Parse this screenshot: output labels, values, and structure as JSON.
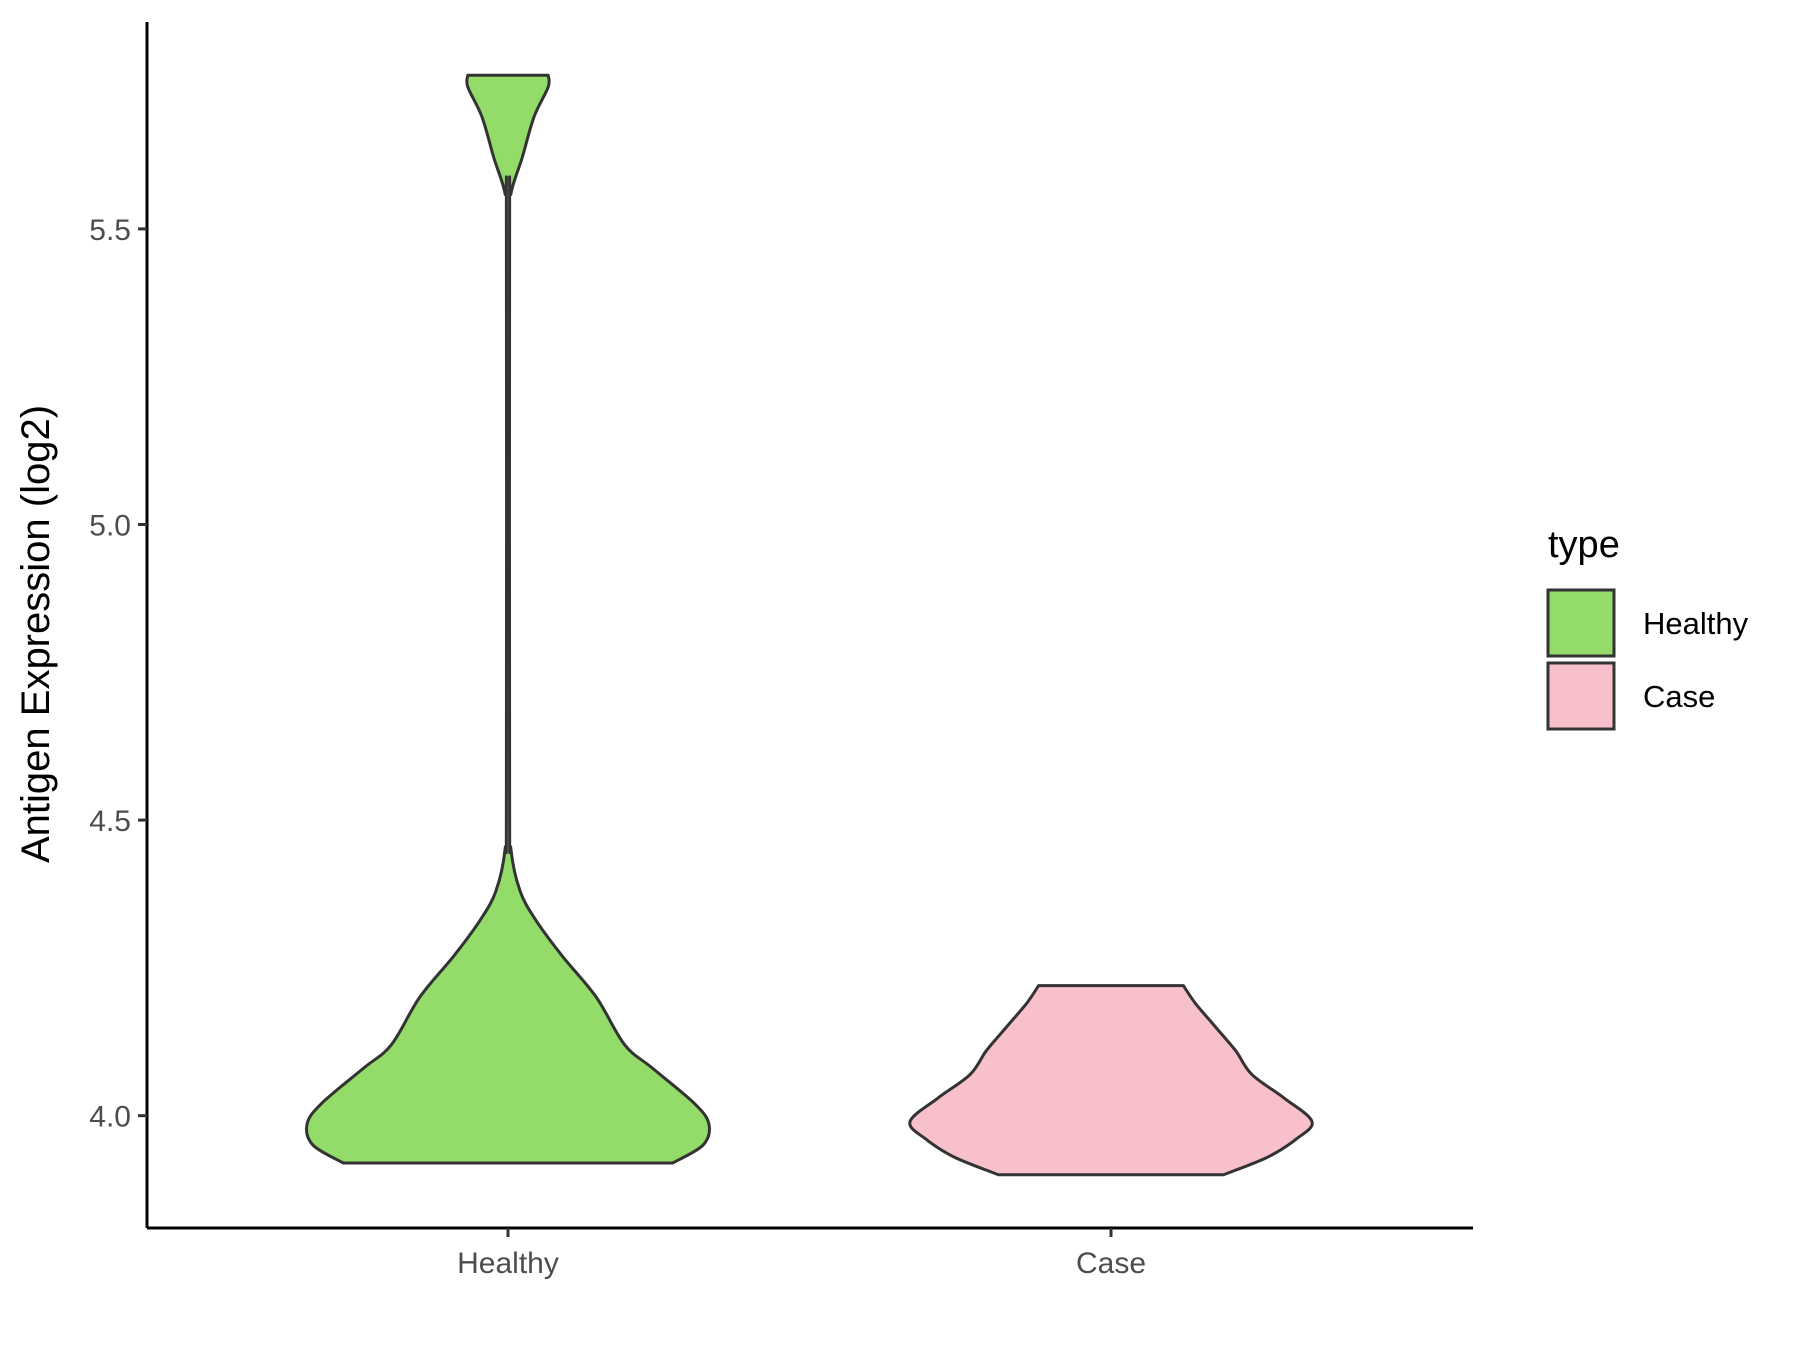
{
  "chart_data": {
    "type": "violin",
    "title": "",
    "xlabel": "",
    "ylabel": "Antigen Expression (log2)",
    "ylim": [
      3.81,
      5.85
    ],
    "yticks": [
      "4.0",
      "4.5",
      "5.0",
      "5.5"
    ],
    "ytick_values": [
      4.0,
      4.5,
      5.0,
      5.5
    ],
    "categories": [
      "Healthy",
      "Case"
    ],
    "grid": false,
    "legend": {
      "title": "type",
      "position": "right",
      "entries": [
        {
          "label": "Healthy",
          "color": "#93dc6a"
        },
        {
          "label": "Case",
          "color": "#f8c0cb"
        }
      ]
    },
    "series": [
      {
        "name": "Healthy",
        "color": "#93dc6a",
        "min": 3.92,
        "max": 5.76,
        "density_profile": [
          [
            3.92,
            0.82
          ],
          [
            3.95,
            0.97
          ],
          [
            3.985,
            1.0
          ],
          [
            4.02,
            0.93
          ],
          [
            4.08,
            0.72
          ],
          [
            4.12,
            0.58
          ],
          [
            4.2,
            0.44
          ],
          [
            4.27,
            0.27
          ],
          [
            4.33,
            0.14
          ],
          [
            4.38,
            0.06
          ],
          [
            4.45,
            0.015
          ],
          [
            4.55,
            0.0
          ],
          [
            5.5,
            0.0
          ],
          [
            5.56,
            0.015
          ],
          [
            5.62,
            0.07
          ],
          [
            5.69,
            0.13
          ],
          [
            5.74,
            0.2
          ],
          [
            5.76,
            0.2
          ]
        ]
      },
      {
        "name": "Case",
        "color": "#f8c0cb",
        "min": 3.9,
        "max": 4.22,
        "density_profile": [
          [
            3.9,
            0.56
          ],
          [
            3.93,
            0.78
          ],
          [
            3.96,
            0.92
          ],
          [
            3.99,
            1.0
          ],
          [
            4.03,
            0.86
          ],
          [
            4.07,
            0.7
          ],
          [
            4.11,
            0.62
          ],
          [
            4.15,
            0.52
          ],
          [
            4.19,
            0.42
          ],
          [
            4.22,
            0.36
          ]
        ]
      }
    ],
    "colors": {
      "outline": "#333333",
      "axis": "#000000",
      "tick_text": "#4d4d4d"
    }
  }
}
